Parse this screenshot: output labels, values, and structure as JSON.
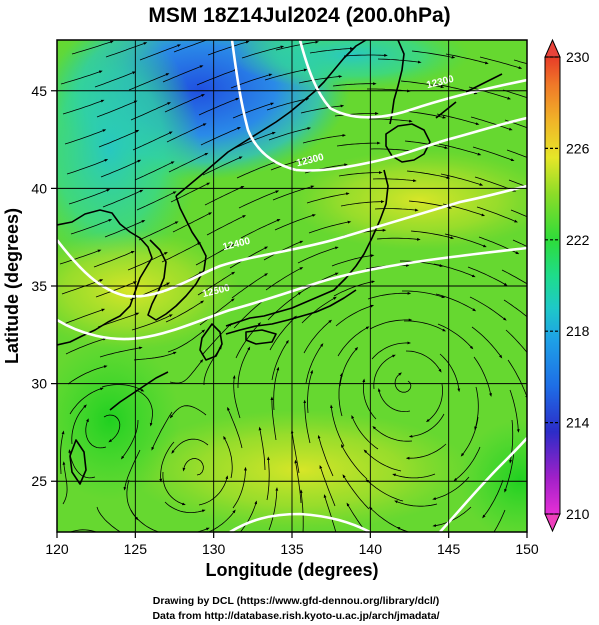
{
  "title": "MSM 18Z14Jul2024 (200.0hPa)",
  "xlabel": "Longitude (degrees)",
  "ylabel": "Latitude  (degrees)",
  "x_ticks": [
    120,
    125,
    130,
    135,
    140,
    145,
    150
  ],
  "y_ticks": [
    25,
    30,
    35,
    40,
    45
  ],
  "xlim": [
    120,
    150
  ],
  "ylim": [
    22.4,
    47.6
  ],
  "colorbar": {
    "min": 210,
    "max": 230,
    "tick_labels": [
      230,
      226,
      222,
      218,
      214,
      210
    ],
    "unit": ""
  },
  "contour_labels": [
    {
      "text": "12300",
      "lon": 144.5,
      "lat": 45.3
    },
    {
      "text": "12300",
      "lon": 136.2,
      "lat": 41.3
    },
    {
      "text": "12400",
      "lon": 131.5,
      "lat": 37.0
    },
    {
      "text": "12500",
      "lon": 130.2,
      "lat": 34.6
    }
  ],
  "credits": {
    "line1": "Drawing by DCL (https://www.gfd-dennou.org/library/dcl/)",
    "line2": "Data from http://database.rish.kyoto-u.ac.jp/arch/jmadata/"
  },
  "colors": {
    "frame": "#000000",
    "contour": "#ffffff",
    "coast": "#000000",
    "cbar_top": "#e8433a",
    "cbar_bottom": "#ee3fbd"
  }
}
